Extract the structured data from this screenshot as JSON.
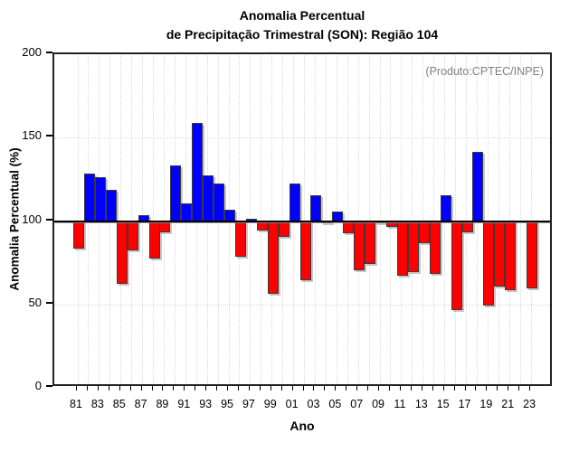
{
  "title": {
    "line1": "Anomalia Percentual",
    "line2": "de Precipitação Trimestral (SON): Região 104"
  },
  "annotation": "(Produto:CPTEC/INPE)",
  "chart_data": {
    "type": "bar",
    "title": "Anomalia Percentual de Precipitação Trimestral (SON): Região 104",
    "xlabel": "Ano",
    "ylabel": "Anomalia Percentual (%)",
    "ylim": [
      0,
      200
    ],
    "baseline": 100,
    "grid_horizontal_dotted": [
      50,
      150
    ],
    "grid_vertical": "dotted line at every year",
    "legend": "none",
    "colors": {
      "above_baseline": "#0000ff",
      "below_baseline": "#ff0000",
      "annotation_gray": "#808080"
    },
    "y_tick_labels": [
      "0",
      "50",
      "100",
      "150",
      "200"
    ],
    "y_tick_values": [
      0,
      50,
      100,
      150,
      200
    ],
    "x_tick_labels": [
      "81",
      "83",
      "85",
      "87",
      "89",
      "91",
      "93",
      "95",
      "97",
      "99",
      "01",
      "03",
      "05",
      "07",
      "09",
      "11",
      "13",
      "15",
      "17",
      "19",
      "21",
      "23"
    ],
    "years": [
      1981,
      1982,
      1983,
      1984,
      1985,
      1986,
      1987,
      1988,
      1989,
      1990,
      1991,
      1992,
      1993,
      1994,
      1995,
      1996,
      1997,
      1998,
      1999,
      2000,
      2001,
      2002,
      2003,
      2004,
      2005,
      2006,
      2007,
      2008,
      2009,
      2010,
      2011,
      2012,
      2013,
      2014,
      2015,
      2016,
      2017,
      2018,
      2019,
      2020,
      2021,
      2022,
      2023
    ],
    "values": [
      84,
      128,
      126,
      118,
      63,
      83,
      103,
      78,
      94,
      133,
      110,
      158,
      127,
      122,
      106,
      79,
      101,
      95,
      57,
      91,
      122,
      65,
      115,
      99,
      105,
      93,
      71,
      75,
      99,
      97,
      68,
      70,
      87,
      69,
      115,
      47,
      94,
      141,
      50,
      61,
      59,
      100,
      60
    ]
  }
}
